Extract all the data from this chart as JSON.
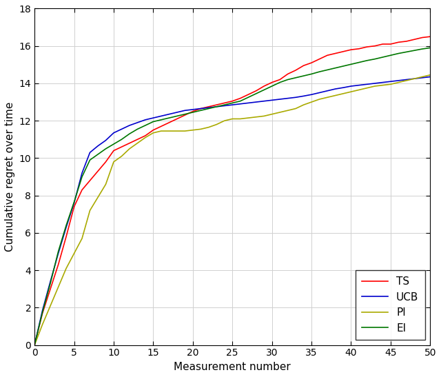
{
  "title": "",
  "xlabel": "Measurement number",
  "ylabel": "Cumulative regret over time",
  "xlim": [
    0,
    50
  ],
  "ylim": [
    0,
    18
  ],
  "xticks": [
    0,
    5,
    10,
    15,
    20,
    25,
    30,
    35,
    40,
    45,
    50
  ],
  "yticks": [
    0,
    2,
    4,
    6,
    8,
    10,
    12,
    14,
    16,
    18
  ],
  "colors": {
    "TS": "#ff0000",
    "UCB": "#0000cc",
    "PI": "#aaaa00",
    "EI": "#007700"
  },
  "legend_loc": "lower right",
  "grid_color": "#d0d0d0",
  "TS_x": [
    0,
    1,
    2,
    3,
    4,
    5,
    6,
    7,
    8,
    9,
    10,
    11,
    12,
    13,
    14,
    15,
    16,
    17,
    18,
    19,
    20,
    21,
    22,
    23,
    24,
    25,
    26,
    27,
    28,
    29,
    30,
    31,
    32,
    33,
    34,
    35,
    36,
    37,
    38,
    39,
    40,
    41,
    42,
    43,
    44,
    45,
    46,
    47,
    48,
    49,
    50
  ],
  "TS_y": [
    0,
    1.7,
    3.0,
    4.3,
    5.8,
    7.4,
    8.3,
    8.8,
    9.3,
    9.8,
    10.4,
    10.6,
    10.8,
    11.0,
    11.2,
    11.5,
    11.7,
    11.9,
    12.1,
    12.3,
    12.5,
    12.65,
    12.75,
    12.85,
    12.95,
    13.05,
    13.2,
    13.4,
    13.6,
    13.85,
    14.05,
    14.2,
    14.5,
    14.7,
    14.95,
    15.1,
    15.3,
    15.5,
    15.6,
    15.7,
    15.8,
    15.85,
    15.95,
    16.0,
    16.1,
    16.1,
    16.2,
    16.25,
    16.35,
    16.45,
    16.5
  ],
  "UCB_x": [
    0,
    1,
    2,
    3,
    4,
    5,
    6,
    7,
    8,
    9,
    10,
    11,
    12,
    13,
    14,
    15,
    16,
    17,
    18,
    19,
    20,
    21,
    22,
    23,
    24,
    25,
    26,
    27,
    28,
    29,
    30,
    31,
    32,
    33,
    34,
    35,
    36,
    37,
    38,
    39,
    40,
    41,
    42,
    43,
    44,
    45,
    46,
    47,
    48,
    49,
    50
  ],
  "UCB_y": [
    0,
    1.85,
    3.4,
    4.9,
    6.3,
    7.6,
    9.2,
    10.3,
    10.65,
    10.95,
    11.35,
    11.55,
    11.75,
    11.9,
    12.05,
    12.15,
    12.25,
    12.35,
    12.45,
    12.55,
    12.6,
    12.65,
    12.7,
    12.75,
    12.8,
    12.85,
    12.9,
    12.95,
    13.0,
    13.05,
    13.1,
    13.15,
    13.2,
    13.25,
    13.32,
    13.4,
    13.5,
    13.6,
    13.7,
    13.77,
    13.85,
    13.9,
    13.95,
    14.0,
    14.05,
    14.1,
    14.15,
    14.2,
    14.25,
    14.3,
    14.35
  ],
  "PI_x": [
    0,
    1,
    2,
    3,
    4,
    5,
    6,
    7,
    8,
    9,
    10,
    11,
    12,
    13,
    14,
    15,
    16,
    17,
    18,
    19,
    20,
    21,
    22,
    23,
    24,
    25,
    26,
    27,
    28,
    29,
    30,
    31,
    32,
    33,
    34,
    35,
    36,
    37,
    38,
    39,
    40,
    41,
    42,
    43,
    44,
    45,
    46,
    47,
    48,
    49,
    50
  ],
  "PI_y": [
    0,
    1.1,
    2.1,
    3.1,
    4.1,
    4.9,
    5.7,
    7.2,
    7.9,
    8.6,
    9.8,
    10.1,
    10.5,
    10.8,
    11.1,
    11.35,
    11.45,
    11.45,
    11.45,
    11.45,
    11.5,
    11.55,
    11.65,
    11.8,
    12.0,
    12.1,
    12.1,
    12.15,
    12.2,
    12.25,
    12.35,
    12.45,
    12.55,
    12.65,
    12.85,
    13.0,
    13.15,
    13.25,
    13.35,
    13.45,
    13.55,
    13.65,
    13.75,
    13.85,
    13.9,
    13.95,
    14.05,
    14.15,
    14.25,
    14.35,
    14.45
  ],
  "EI_x": [
    0,
    1,
    2,
    3,
    4,
    5,
    6,
    7,
    8,
    9,
    10,
    11,
    12,
    13,
    14,
    15,
    16,
    17,
    18,
    19,
    20,
    21,
    22,
    23,
    24,
    25,
    26,
    27,
    28,
    29,
    30,
    31,
    32,
    33,
    34,
    35,
    36,
    37,
    38,
    39,
    40,
    41,
    42,
    43,
    44,
    45,
    46,
    47,
    48,
    49,
    50
  ],
  "EI_y": [
    0,
    1.75,
    3.3,
    5.0,
    6.4,
    7.65,
    9.0,
    9.9,
    10.2,
    10.5,
    10.75,
    11.0,
    11.3,
    11.55,
    11.75,
    11.95,
    12.05,
    12.15,
    12.25,
    12.35,
    12.45,
    12.55,
    12.65,
    12.75,
    12.85,
    12.95,
    13.05,
    13.25,
    13.45,
    13.65,
    13.85,
    14.05,
    14.2,
    14.3,
    14.4,
    14.5,
    14.62,
    14.72,
    14.82,
    14.92,
    15.02,
    15.12,
    15.22,
    15.3,
    15.4,
    15.5,
    15.6,
    15.68,
    15.76,
    15.84,
    15.9
  ]
}
